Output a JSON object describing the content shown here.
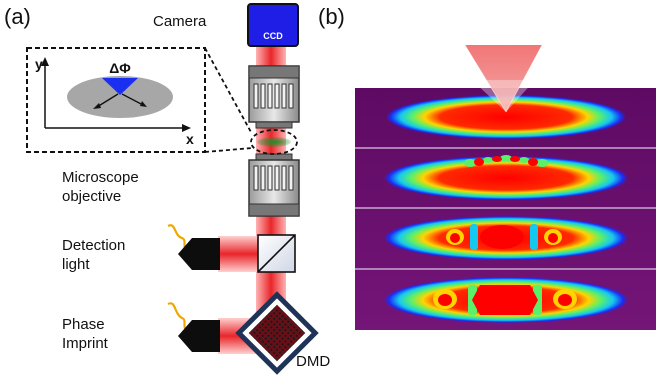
{
  "panel_a": {
    "label": "(a)",
    "camera_label": "Camera",
    "ccd_label": "CCD",
    "inset": {
      "y_axis": "y",
      "x_axis": "x",
      "phase_label": "ΔΦ"
    },
    "objective_label_line1": "Microscope",
    "objective_label_line2": "objective",
    "detection_line1": "Detection",
    "detection_line2": "light",
    "phase_line1": "Phase",
    "phase_line2": "Imprint",
    "dmd_label": "DMD"
  },
  "panel_b": {
    "label": "(b)",
    "frames": [
      "frame-1",
      "frame-2",
      "frame-3",
      "frame-4"
    ]
  },
  "colors": {
    "beam": "#e8262a",
    "ccd_blue": "#1e1ee6",
    "dmd_frame": "#1f3358",
    "cone": "#f07070",
    "background_purple": "#6b0f6f",
    "phase_blue": "#1b2ff2",
    "atom_green": "#2a8a2a"
  }
}
